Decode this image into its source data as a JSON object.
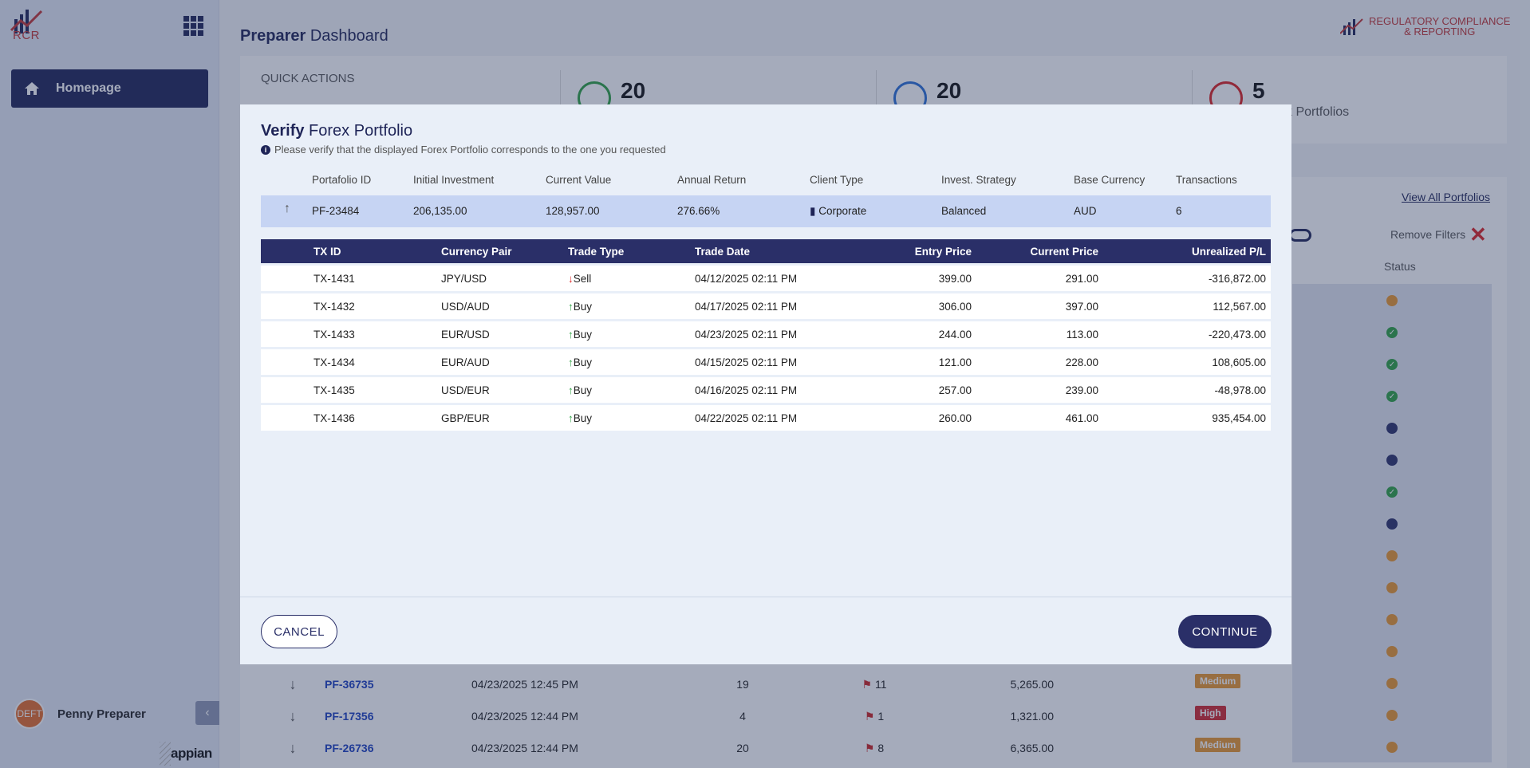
{
  "sidebar": {
    "logo_text": "RCR",
    "nav": [
      {
        "label": "Homepage",
        "icon": "home-icon"
      }
    ],
    "user": {
      "name": "Penny Preparer",
      "avatar_text": "DEFT"
    },
    "footer_brand": "appian"
  },
  "header": {
    "title_bold": "Preparer",
    "title_rest": "Dashboard",
    "brand_line1": "REGULATORY COMPLIANCE",
    "brand_line2": "& REPORTING"
  },
  "quick_actions": {
    "label": "QUICK ACTIONS"
  },
  "stats": [
    {
      "value": "20",
      "label": "",
      "color": "#2ea043"
    },
    {
      "value": "20",
      "label": "",
      "color": "#2a6fd6"
    },
    {
      "value": "5",
      "label": "sk Portfolios",
      "color": "#d22"
    }
  ],
  "background": {
    "view_all": "View All Portfolios",
    "remove_filters": "Remove Filters",
    "status_header": "Status",
    "rows": [
      {
        "id": "PF-36735",
        "date": "04/23/2025 12:45 PM",
        "count": "19",
        "flags": "11",
        "amount": "5,265.00",
        "risk": "Medium"
      },
      {
        "id": "PF-17356",
        "date": "04/23/2025 12:44 PM",
        "count": "4",
        "flags": "1",
        "amount": "1,321.00",
        "risk": "High"
      },
      {
        "id": "PF-26736",
        "date": "04/23/2025 12:44 PM",
        "count": "20",
        "flags": "8",
        "amount": "6,365.00",
        "risk": "Medium"
      }
    ],
    "colors": {
      "medium": "#e8962e",
      "high": "#d0262d",
      "brand": "#1e2457"
    }
  },
  "modal": {
    "title_bold": "Verify",
    "title_rest": "Forex Portfolio",
    "note": "Please verify that the displayed Forex Portfolio corresponds to the one you requested",
    "portfolio_headers": [
      "Portafolio ID",
      "Initial Investment",
      "Current Value",
      "Annual Return",
      "Client Type",
      "Invest. Strategy",
      "Base Currency",
      "Transactions"
    ],
    "portfolio": {
      "id": "PF-23484",
      "initial_investment": "206,135.00",
      "current_value": "128,957.00",
      "annual_return": "276.66%",
      "client_type": "Corporate",
      "strategy": "Balanced",
      "base_currency": "AUD",
      "transactions": "6"
    },
    "tx_headers": [
      "TX ID",
      "Currency Pair",
      "Trade Type",
      "Trade Date",
      "Entry Price",
      "Current Price",
      "Unrealized P/L"
    ],
    "transactions": [
      {
        "id": "TX-1431",
        "pair": "JPY/USD",
        "type": "Sell",
        "date": "04/12/2025 02:11 PM",
        "entry": "399.00",
        "current": "291.00",
        "pl": "-316,872.00"
      },
      {
        "id": "TX-1432",
        "pair": "USD/AUD",
        "type": "Buy",
        "date": "04/17/2025 02:11 PM",
        "entry": "306.00",
        "current": "397.00",
        "pl": "112,567.00"
      },
      {
        "id": "TX-1433",
        "pair": "EUR/USD",
        "type": "Buy",
        "date": "04/23/2025 02:11 PM",
        "entry": "244.00",
        "current": "113.00",
        "pl": "-220,473.00"
      },
      {
        "id": "TX-1434",
        "pair": "EUR/AUD",
        "type": "Buy",
        "date": "04/15/2025 02:11 PM",
        "entry": "121.00",
        "current": "228.00",
        "pl": "108,605.00"
      },
      {
        "id": "TX-1435",
        "pair": "USD/EUR",
        "type": "Buy",
        "date": "04/16/2025 02:11 PM",
        "entry": "257.00",
        "current": "239.00",
        "pl": "-48,978.00"
      },
      {
        "id": "TX-1436",
        "pair": "GBP/EUR",
        "type": "Buy",
        "date": "04/22/2025 02:11 PM",
        "entry": "260.00",
        "current": "461.00",
        "pl": "935,454.00"
      }
    ],
    "cancel_label": "CANCEL",
    "continue_label": "CONTINUE"
  }
}
